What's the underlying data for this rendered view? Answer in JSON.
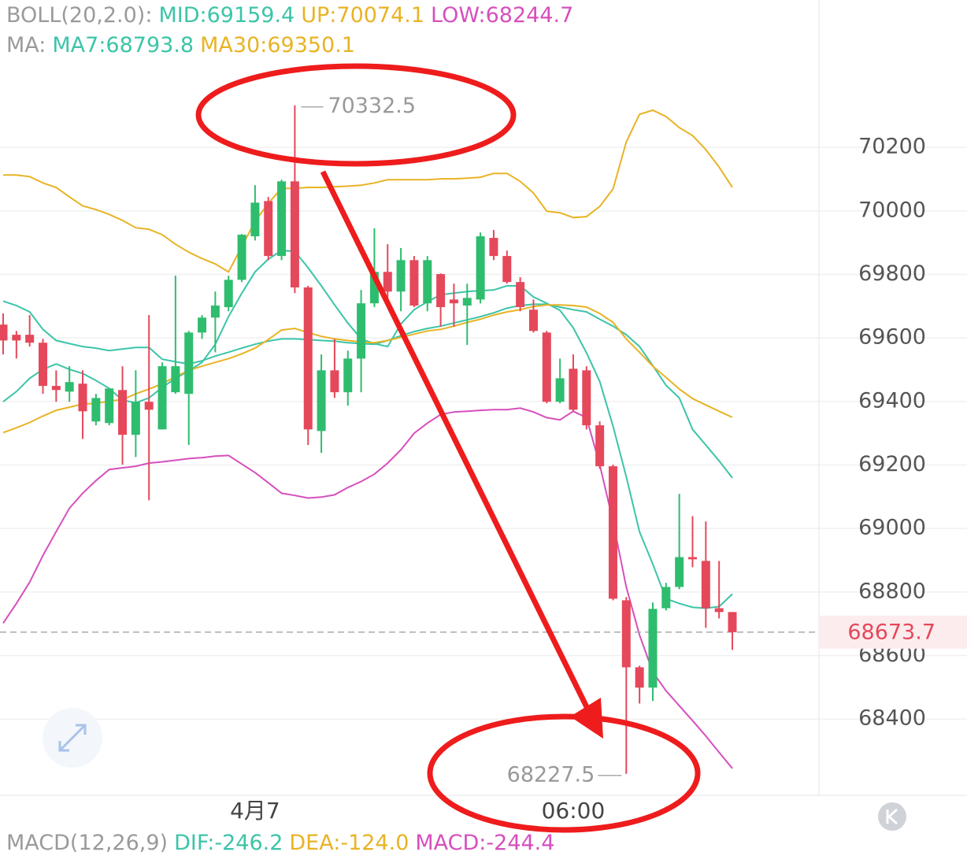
{
  "chart_data": {
    "type": "candlestick",
    "indicator_groups": [
      {
        "label": "BOLL(20,2.0):",
        "series": [
          {
            "label": "MID:69159.4",
            "color": "#3cc4a8",
            "values": [
              69716,
              69702,
              69682,
              69627,
              69592,
              69582,
              69573,
              69568,
              69560,
              69565,
              69570,
              69570,
              69533,
              69525,
              69518,
              69528,
              69543,
              69555,
              69568,
              69580,
              69590,
              69597,
              69597,
              69595,
              69592,
              69590,
              69585,
              69582,
              69580,
              69592,
              69607,
              69620,
              69630,
              69637,
              69647,
              69657,
              69667,
              69679,
              69694,
              69702,
              69706,
              69706,
              69697,
              69689,
              69682,
              69659,
              69637,
              69610,
              69573,
              69513,
              69451,
              69411,
              69312,
              69263,
              69213,
              69159.4
            ]
          },
          {
            "label": "UP:70074.1",
            "color": "#e8b324",
            "values": [
              70113,
              70113,
              70108,
              70088,
              70074,
              70044,
              70016,
              70004,
              69989,
              69970,
              69947,
              69942,
              69925,
              69895,
              69870,
              69850,
              69833,
              69808,
              69888,
              69967,
              70024,
              70071,
              70071,
              70074,
              70074,
              70076,
              70078,
              70081,
              70088,
              70098,
              70098,
              70098,
              70098,
              70101,
              70101,
              70103,
              70106,
              70118,
              70118,
              70093,
              70056,
              69999,
              69994,
              69979,
              69982,
              70014,
              70069,
              70217,
              70304,
              70317,
              70297,
              70262,
              70237,
              70193,
              70138,
              70074.1
            ]
          },
          {
            "label": "LOW:68244.7",
            "color": "#d64fbd",
            "values": [
              68702,
              68764,
              68831,
              68915,
              68990,
              69064,
              69111,
              69151,
              69186,
              69191,
              69196,
              69206,
              69210,
              69215,
              69220,
              69223,
              69228,
              69230,
              69203,
              69176,
              69144,
              69111,
              69104,
              69096,
              69099,
              69106,
              69129,
              69148,
              69171,
              69206,
              69248,
              69300,
              69332,
              69359,
              69367,
              69369,
              69372,
              69374,
              69374,
              69379,
              69367,
              69349,
              69342,
              69369,
              69349,
              69201,
              69022,
              68816,
              68665,
              68548,
              68489,
              68442,
              68395,
              68347,
              68295,
              68244.7
            ]
          }
        ]
      },
      {
        "label": "MA:",
        "series": [
          {
            "label": "MA7:68793.8",
            "color": "#3cc4a8",
            "values": [
              69399,
              69431,
              69473,
              69501,
              69518,
              69501,
              69488,
              69466,
              69441,
              69404,
              69396,
              69411,
              69444,
              69473,
              69496,
              69523,
              69580,
              69667,
              69741,
              69808,
              69848,
              69875,
              69873,
              69821,
              69764,
              69704,
              69647,
              69597,
              69582,
              69573,
              69644,
              69689,
              69714,
              69736,
              69741,
              69746,
              69749,
              69751,
              69764,
              69764,
              69729,
              69709,
              69687,
              69632,
              69553,
              69463,
              69322,
              69163,
              68990,
              68888,
              68779,
              68764,
              68752,
              68749,
              68754,
              68793.8
            ]
          },
          {
            "label": "MA30:69350.1",
            "color": "#e8b324",
            "values": [
              69302,
              69317,
              69334,
              69354,
              69372,
              69382,
              69392,
              69394,
              69401,
              69406,
              69424,
              69439,
              69456,
              69478,
              69498,
              69511,
              69523,
              69535,
              69550,
              69568,
              69595,
              69625,
              69630,
              69617,
              69605,
              69597,
              69592,
              69587,
              69585,
              69592,
              69602,
              69612,
              69622,
              69627,
              69637,
              69649,
              69659,
              69672,
              69682,
              69689,
              69699,
              69704,
              69704,
              69702,
              69697,
              69677,
              69649,
              69597,
              69555,
              69511,
              69476,
              69439,
              69409,
              69389,
              69369,
              69350.1
            ]
          }
        ]
      }
    ],
    "categories": [
      null,
      null,
      null,
      null,
      null,
      null,
      null,
      null,
      null,
      null,
      null,
      null,
      null,
      null,
      null,
      null,
      null,
      null,
      null,
      "4月7",
      null,
      null,
      null,
      null,
      null,
      null,
      null,
      null,
      null,
      null,
      null,
      null,
      null,
      null,
      null,
      null,
      null,
      null,
      null,
      null,
      null,
      null,
      null,
      "06:00",
      null,
      null,
      null,
      null,
      null,
      null,
      null,
      null,
      null,
      null,
      null,
      null
    ],
    "candles": {
      "open": [
        69642,
        69610,
        69610,
        69585,
        69449,
        69431,
        69456,
        69337,
        69332,
        69436,
        69295,
        69399,
        69312,
        69429,
        69424,
        69617,
        69664,
        69697,
        69783,
        69920,
        70031,
        69858,
        70093,
        69759,
        69307,
        69498,
        69429,
        69535,
        69709,
        69808,
        69746,
        69845,
        69709,
        69801,
        69721,
        69702,
        69721,
        69915,
        69858,
        69776,
        69689,
        69617,
        69399,
        69503,
        69498,
        69325,
        69196,
        68774,
        68563,
        68499,
        68749,
        68816,
        68910,
        68898,
        68749,
        68737
      ],
      "high": [
        69677,
        69622,
        69672,
        69597,
        69498,
        69511,
        69498,
        69424,
        69424,
        69511,
        69498,
        69672,
        69523,
        69796,
        69622,
        69672,
        69746,
        69796,
        69927,
        70081,
        70044,
        70098,
        70332.5,
        69764,
        69548,
        69597,
        69560,
        69751,
        69945,
        69895,
        69883,
        69858,
        69858,
        69803,
        69771,
        69771,
        69932,
        69940,
        69875,
        69791,
        69721,
        69622,
        69535,
        69548,
        69511,
        69337,
        69201,
        68784,
        68568,
        68767,
        68829,
        69109,
        69039,
        69022,
        68898,
        68737
      ],
      "low": [
        69548,
        69535,
        69573,
        69424,
        69399,
        69399,
        69282,
        69325,
        69325,
        69201,
        69225,
        69089,
        69312,
        69424,
        69263,
        69597,
        69555,
        69684,
        69776,
        69907,
        69845,
        69845,
        69741,
        69263,
        69238,
        69411,
        69387,
        69429,
        69697,
        69709,
        69684,
        69697,
        69684,
        69635,
        69635,
        69578,
        69709,
        69845,
        69771,
        69684,
        69617,
        69394,
        69394,
        69369,
        69312,
        69188,
        68774,
        68227.5,
        68449,
        68457,
        68742,
        68809,
        68878,
        68687,
        68717,
        68618
      ],
      "close": [
        69592,
        69592,
        69585,
        69449,
        69436,
        69461,
        69369,
        69411,
        69441,
        69295,
        69399,
        69374,
        69511,
        69511,
        69617,
        69664,
        69702,
        69783,
        69925,
        70026,
        69858,
        70093,
        69759,
        69312,
        69498,
        69429,
        69535,
        69709,
        69808,
        69746,
        69845,
        69702,
        69845,
        69697,
        69709,
        69726,
        69920,
        69858,
        69776,
        69697,
        69622,
        69399,
        69473,
        69374,
        69325,
        69196,
        68779,
        68563,
        68499,
        68747,
        68816,
        68910,
        68903,
        68749,
        68737,
        68673.7
      ]
    },
    "up_color": "#2ebd6e",
    "down_color": "#e5485a",
    "ylim": [
      68160,
      70664
    ],
    "yticks": [
      68400,
      68600,
      68800,
      69000,
      69200,
      69400,
      69600,
      69800,
      70000,
      70200
    ],
    "grid": true,
    "last_price": 68673.7,
    "macd": {
      "label": "MACD(12,26,9)",
      "texts": [
        {
          "label": "DIF:-246.2",
          "color": "#3cc4a8"
        },
        {
          "label": "DEA:-124.0",
          "color": "#e8b324"
        },
        {
          "label": "MACD:-244.4",
          "color": "#d64fbd"
        }
      ]
    }
  }
}
